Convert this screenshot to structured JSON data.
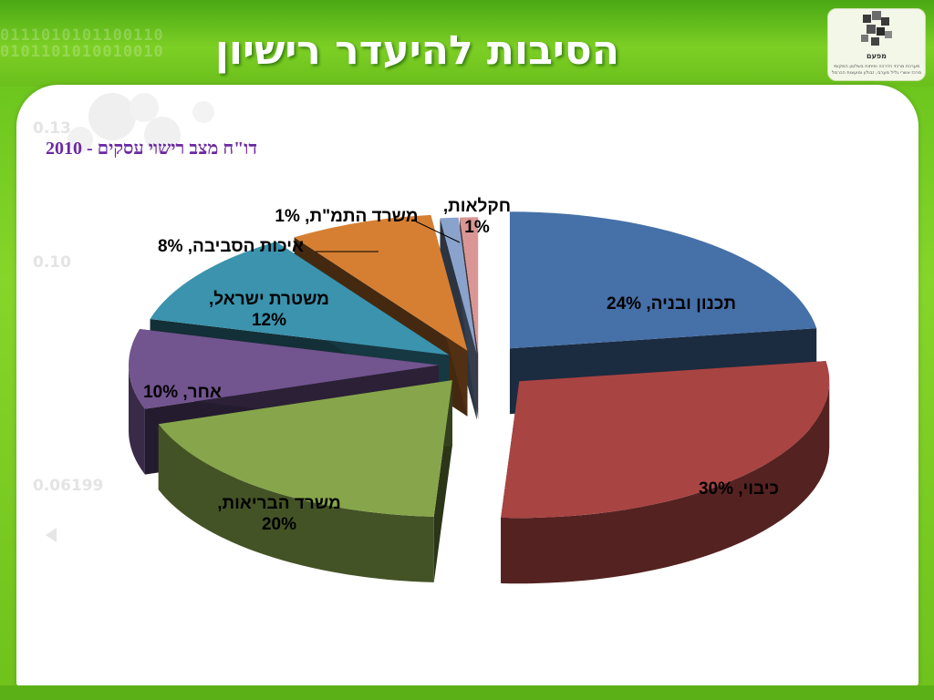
{
  "slide": {
    "title": "הסיבות להיעדר רישיון",
    "subtitle": "דו\"ח מצב רישוי עסקים - 2010",
    "logo": {
      "name": "מפעם",
      "tagline_1": "מערכת מרכזי הדרכה ופיתוח בשלטון המקומי",
      "tagline_2": "מרכז אשרי גליל מערבי, זבולון ומועצות הכרמל"
    },
    "background_binary": [
      "0111010101100110",
      "0101101010010010"
    ],
    "watermarks": [
      "0.13",
      "0.10",
      "0.06199"
    ],
    "colors": {
      "title": "#ffffff",
      "subtitle": "#6b2aa0",
      "green_bg": "#78cc22"
    }
  },
  "chart_data": {
    "type": "pie",
    "style": "3d-exploded",
    "title": "",
    "series": [
      {
        "name": "תכנון ובניה",
        "value": 24,
        "label": "תכנון ובניה, 24%",
        "color": "#4670a8"
      },
      {
        "name": "כיבוי",
        "value": 30,
        "label": "כיבוי, 30%",
        "color": "#a84442"
      },
      {
        "name": "משרד הבריאות",
        "value": 20,
        "label": "משרד הבריאות, 20%",
        "color": "#87a64b"
      },
      {
        "name": "אחר",
        "value": 10,
        "label": "אחר, 10%",
        "color": "#72548f"
      },
      {
        "name": "משטרת ישראל",
        "value": 12,
        "label": "משטרת ישראל, 12%",
        "color": "#3b93ad"
      },
      {
        "name": "איכות הסביבה",
        "value": 8,
        "label": "איכות הסביבה, 8%",
        "color": "#d67f32"
      },
      {
        "name": "משרד התמ\"ת",
        "value": 1,
        "label": "משרד התמ\"ת, 1%",
        "color": "#8aa3cc"
      },
      {
        "name": "חקלאות",
        "value": 1,
        "label": "חקלאות, 1%",
        "color": "#d99694"
      }
    ]
  }
}
